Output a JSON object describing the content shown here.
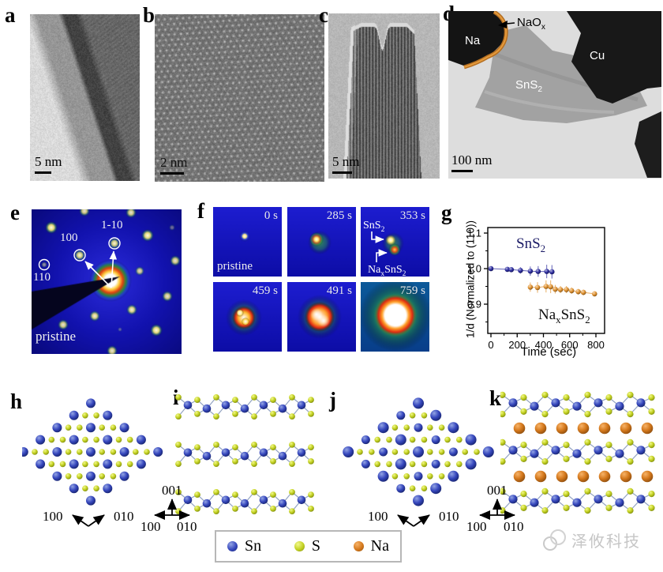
{
  "panels": {
    "a": {
      "letter": "a",
      "scale_bar": "5 nm"
    },
    "b": {
      "letter": "b",
      "scale_bar": "2 nm"
    },
    "c": {
      "letter": "c",
      "scale_bar": "5 nm"
    },
    "d": {
      "letter": "d",
      "scale_bar": "100 nm",
      "labels": {
        "na": "Na",
        "naox_base": "NaO",
        "naox_sub": "x",
        "cu": "Cu",
        "sns2_base": "SnS",
        "sns2_sub": "2"
      }
    },
    "e": {
      "letter": "e",
      "caption": "pristine",
      "spots": {
        "s100": "100",
        "s1m10": "1-10",
        "s110": "110"
      }
    },
    "f": {
      "letter": "f",
      "tiles": [
        {
          "time": "0 s",
          "caption": "pristine"
        },
        {
          "time": "285 s"
        },
        {
          "time": "353 s",
          "sns2_base": "SnS",
          "sns2_sub": "2",
          "nax_p1": "Na",
          "nax_s1": "x",
          "nax_p2": "SnS",
          "nax_s2": "2"
        },
        {
          "time": "459 s"
        },
        {
          "time": "491 s"
        },
        {
          "time": "759 s"
        }
      ]
    },
    "g": {
      "letter": "g",
      "series_labels": {
        "sns2_base": "SnS",
        "sns2_sub": "2",
        "nax_p1": "Na",
        "nax_s1": "x",
        "nax_p2": "SnS",
        "nax_s2": "2"
      }
    },
    "h": {
      "letter": "h",
      "axis": {
        "a100": "100",
        "a010": "010"
      }
    },
    "i": {
      "letter": "i",
      "axis": {
        "a001": "001",
        "a100": "100",
        "a010": "010"
      }
    },
    "j": {
      "letter": "j",
      "axis": {
        "a100": "100",
        "a010": "010"
      }
    },
    "k": {
      "letter": "k",
      "axis": {
        "a001": "001",
        "a100": "100",
        "a010": "010"
      }
    }
  },
  "legend": {
    "items": [
      {
        "label": "Sn",
        "color": "#3647bd"
      },
      {
        "label": "S",
        "color": "#c2d021"
      },
      {
        "label": "Na",
        "color": "#d4781c"
      }
    ]
  },
  "watermark": {
    "text": "泽攸科技"
  },
  "chart_data": {
    "type": "scatter",
    "title": "",
    "xlabel": "Time (sec)",
    "ylabel": "1/d (Normalized to (110))",
    "xlim": [
      0,
      880
    ],
    "ylim": [
      0.818,
      1.115
    ],
    "xticks": [
      0,
      200,
      400,
      600,
      800
    ],
    "xticks_minor": [
      100,
      300,
      500,
      700
    ],
    "yticks": [
      1.1,
      1.0,
      0.9
    ],
    "yticks_minor": [
      1.05,
      0.95,
      0.85
    ],
    "grid": false,
    "legend_position": "inline-annotations",
    "series": [
      {
        "name": "SnS2",
        "color": "#2b2b9e",
        "x": [
          0,
          125,
          155,
          225,
          300,
          360,
          425,
          465
        ],
        "y": [
          1.0,
          0.998,
          0.997,
          0.995,
          0.993,
          0.992,
          0.992,
          0.991
        ],
        "yerr": [
          0.004,
          0.006,
          0.006,
          0.009,
          0.013,
          0.015,
          0.019,
          0.019
        ]
      },
      {
        "name": "NaxSnS2",
        "color": "#e0912f",
        "x": [
          300,
          355,
          420,
          455,
          490,
          530,
          575,
          615,
          665,
          705,
          790
        ],
        "y": [
          0.948,
          0.947,
          0.95,
          0.949,
          0.942,
          0.941,
          0.941,
          0.938,
          0.935,
          0.933,
          0.929
        ],
        "yerr": [
          0.013,
          0.015,
          0.017,
          0.018,
          0.012,
          0.01,
          0.01,
          0.009,
          0.008,
          0.008,
          0.007
        ]
      }
    ],
    "annotations": [
      {
        "text": "SnS2",
        "x": 220,
        "y": 1.035
      },
      {
        "text": "NaxSnS2",
        "x": 420,
        "y": 0.9
      }
    ]
  }
}
